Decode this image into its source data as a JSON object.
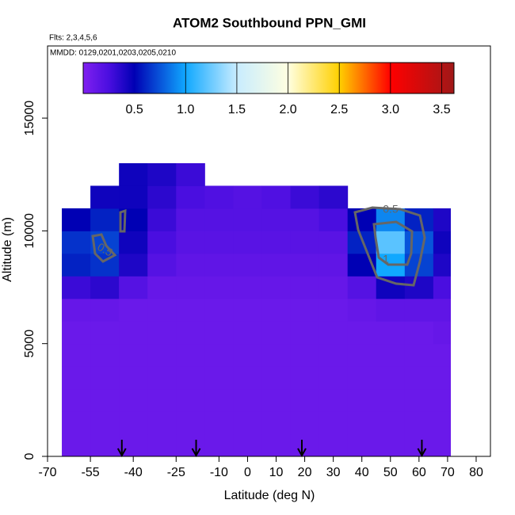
{
  "chart_data": {
    "type": "heatmap",
    "title": "ATOM2 Southbound PPN_GMI",
    "subtitle": "Flts: 2,3,4,5,6",
    "annotation": "MMDD: 0129,0201,0203,0205,0210",
    "x_label": "Latitude (deg N)",
    "y_label": "Altitude (m)",
    "xlim": [
      -70,
      85
    ],
    "ylim": [
      0,
      18200
    ],
    "xticks": [
      -70,
      -55,
      -40,
      -25,
      -10,
      0,
      10,
      20,
      30,
      40,
      50,
      60,
      70,
      80
    ],
    "yticks": [
      0,
      5000,
      10000,
      15000
    ],
    "x_edges": [
      -65,
      -55,
      -45,
      -35,
      -25,
      -15,
      -5,
      5,
      15,
      25,
      35,
      45,
      55,
      65,
      71
    ],
    "y_edges": [
      0,
      1000,
      2000,
      3000,
      4000,
      5000,
      6000,
      7000,
      8000,
      9000,
      10000,
      11000,
      12000,
      13000
    ],
    "z": [
      [
        0.1,
        0.1,
        0.1,
        0.1,
        0.1,
        0.1,
        0.1,
        0.1,
        0.1,
        0.1,
        0.1,
        0.1,
        0.1,
        0.1
      ],
      [
        0.1,
        0.1,
        0.1,
        0.1,
        0.1,
        0.1,
        0.1,
        0.1,
        0.1,
        0.1,
        0.1,
        0.1,
        0.1,
        0.1
      ],
      [
        0.1,
        0.1,
        0.1,
        0.1,
        0.1,
        0.1,
        0.1,
        0.1,
        0.1,
        0.1,
        0.1,
        0.1,
        0.1,
        0.1
      ],
      [
        0.1,
        0.1,
        0.1,
        0.1,
        0.1,
        0.1,
        0.1,
        0.1,
        0.1,
        0.1,
        0.1,
        0.1,
        0.1,
        0.1
      ],
      [
        0.1,
        0.1,
        0.1,
        0.1,
        0.1,
        0.1,
        0.1,
        0.1,
        0.1,
        0.1,
        0.1,
        0.1,
        0.1,
        0.1
      ],
      [
        0.1,
        0.1,
        0.1,
        0.1,
        0.1,
        0.1,
        0.1,
        0.1,
        0.1,
        0.1,
        0.1,
        0.1,
        0.1,
        0.12
      ],
      [
        0.12,
        0.12,
        0.1,
        0.1,
        0.1,
        0.1,
        0.1,
        0.1,
        0.1,
        0.1,
        0.12,
        0.15,
        0.15,
        0.15
      ],
      [
        0.3,
        0.35,
        0.2,
        0.12,
        0.12,
        0.12,
        0.12,
        0.12,
        0.12,
        0.12,
        0.2,
        0.45,
        0.4,
        0.25
      ],
      [
        0.6,
        0.65,
        0.4,
        0.2,
        0.15,
        0.15,
        0.15,
        0.15,
        0.15,
        0.15,
        0.5,
        1.0,
        0.7,
        0.4
      ],
      [
        0.65,
        0.7,
        0.45,
        0.25,
        0.18,
        0.18,
        0.18,
        0.18,
        0.18,
        0.18,
        0.6,
        1.2,
        0.75,
        0.45
      ],
      [
        0.5,
        0.6,
        0.5,
        0.3,
        0.2,
        0.2,
        0.2,
        0.2,
        0.2,
        0.25,
        0.5,
        0.9,
        0.6,
        0.4
      ],
      [
        null,
        0.45,
        0.45,
        0.35,
        0.25,
        0.22,
        0.2,
        0.22,
        0.3,
        0.35,
        null,
        null,
        null,
        null
      ],
      [
        null,
        null,
        0.45,
        0.4,
        0.3,
        null,
        null,
        null,
        null,
        null,
        null,
        null,
        null,
        null
      ]
    ],
    "colorscale": [
      [
        0,
        "#8020f0"
      ],
      [
        0.25,
        "#4a0ee0"
      ],
      [
        0.5,
        "#0000b4"
      ],
      [
        1.0,
        "#10a8ff"
      ],
      [
        1.5,
        "#c8ecff"
      ],
      [
        2.0,
        "#ffffe0"
      ],
      [
        2.5,
        "#ffd000"
      ],
      [
        3.0,
        "#ff0000"
      ],
      [
        3.62,
        "#a01818"
      ]
    ],
    "colorbar_lim": [
      0,
      3.62
    ],
    "colorbar_ticks": [
      0.5,
      1.0,
      1.5,
      2.0,
      2.5,
      3.0,
      3.5
    ],
    "colorbar_tick_labels": [
      "0.5",
      "1.0",
      "1.5",
      "2.0",
      "2.5",
      "3.0",
      "3.5"
    ],
    "markers": [
      -44,
      -18,
      19,
      61
    ],
    "contours": [
      {
        "level": 0.5
      },
      {
        "level": 1
      }
    ]
  }
}
